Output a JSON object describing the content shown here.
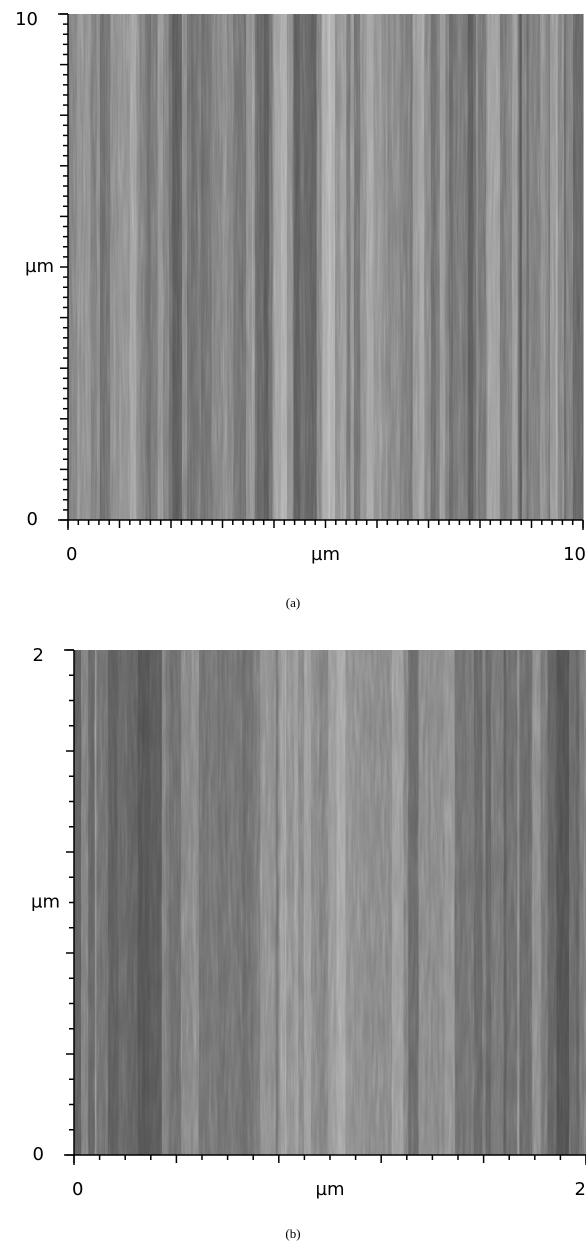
{
  "chart_data": [
    {
      "type": "image",
      "xlabel": "µm",
      "ylabel": "µm",
      "caption": "(a)",
      "xlim": [
        0,
        10
      ],
      "ylim": [
        0,
        10
      ],
      "xticks": [
        0,
        10
      ],
      "yticks": [
        0,
        10
      ]
    },
    {
      "type": "image",
      "xlabel": "µm",
      "ylabel": "µm",
      "caption": "(b)",
      "xlim": [
        0,
        2
      ],
      "ylim": [
        0,
        2
      ],
      "xticks": [
        0,
        2
      ],
      "yticks": [
        0,
        2
      ]
    }
  ]
}
